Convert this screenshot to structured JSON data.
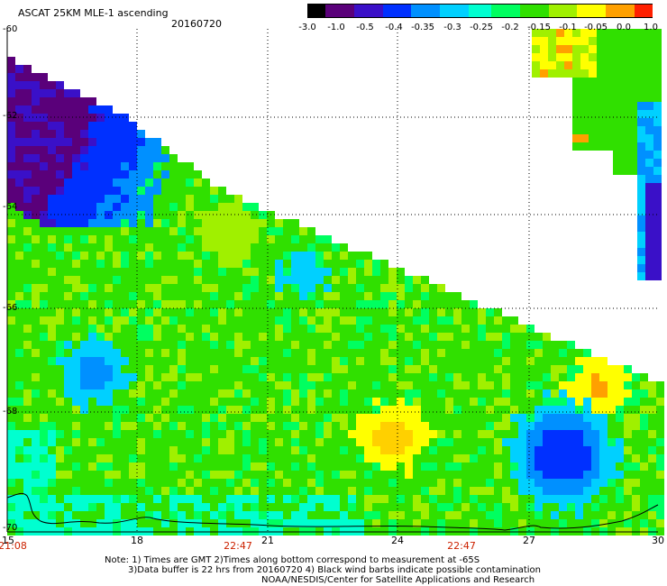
{
  "header": {
    "title": "ASCAT 25KM MLE-1 ascending",
    "date": "20160720"
  },
  "colorbar": {
    "labels": [
      "-3.0",
      "-1.0",
      "-0.5",
      "-0.4",
      "-0.35",
      "-0.3",
      "-0.25",
      "-0.2",
      "-0.15",
      "-0.1",
      "-0.05",
      "0.0",
      "1.0"
    ],
    "colors": [
      "#000000",
      "#5a007a",
      "#3a10c8",
      "#0030ff",
      "#0090ff",
      "#00d0ff",
      "#00ffd0",
      "#00ff60",
      "#30e000",
      "#a0f000",
      "#ffff00",
      "#ffa000",
      "#ff2000"
    ]
  },
  "axes": {
    "lat_labels": [
      "-60",
      "-62",
      "-64",
      "-66",
      "-68",
      "-70"
    ],
    "lon_labels": [
      "15",
      "18",
      "21",
      "24",
      "27",
      "30"
    ],
    "time_labels": [
      "21:08",
      "22:47",
      "22:47"
    ]
  },
  "notes": {
    "line1": "Note: 1) Times are GMT 2)Times along bottom correspond to measurement at -65S",
    "line2": "3)Data buffer is 22 hrs from 20160720 4) Black wind barbs indicate possible contamination",
    "line3": "NOAA/NESDIS/Center for Satellite Applications and Research"
  },
  "colors": {
    "grid": "#000000",
    "coast": "#000000",
    "background": "#ffffff",
    "time_label": "#cc2200"
  }
}
